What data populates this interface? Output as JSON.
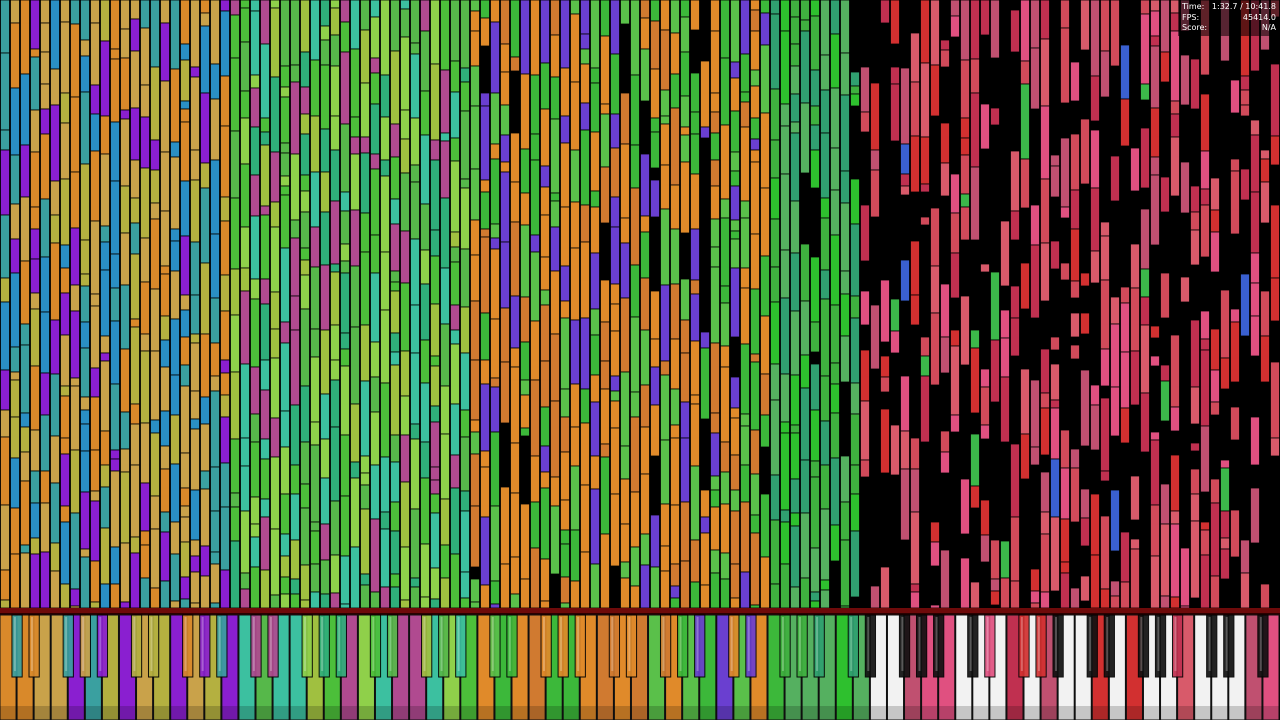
{
  "hud": {
    "time_label": "Time:",
    "time": "1:32.7 / 10:41.8",
    "fps_label": "FPS:",
    "fps": "45414.0",
    "score_label": "Score:",
    "score": "N/A"
  }
}
